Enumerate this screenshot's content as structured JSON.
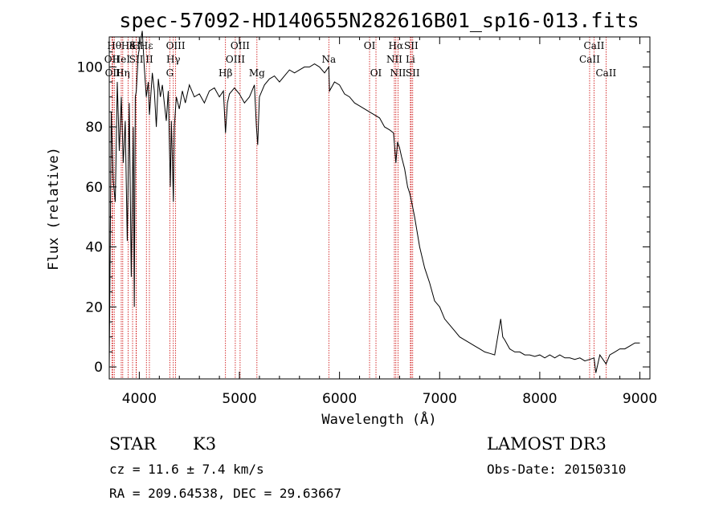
{
  "chart_data": {
    "type": "line",
    "title": "spec-57092-HD140655N282616B01_sp16-013.fits",
    "xlabel": "Wavelength (Å)",
    "ylabel": "Flux (relative)",
    "xlim": [
      3700,
      9100
    ],
    "ylim": [
      -4,
      110
    ],
    "x_ticks": [
      4000,
      5000,
      6000,
      7000,
      8000,
      9000
    ],
    "y_ticks": [
      0,
      20,
      40,
      60,
      80,
      100
    ],
    "series": [
      {
        "name": "spectrum",
        "x": [
          3700,
          3720,
          3740,
          3760,
          3780,
          3800,
          3820,
          3840,
          3860,
          3880,
          3900,
          3920,
          3940,
          3950,
          3960,
          3970,
          3990,
          4010,
          4030,
          4050,
          4070,
          4090,
          4101,
          4110,
          4130,
          4150,
          4170,
          4190,
          4210,
          4230,
          4250,
          4270,
          4290,
          4310,
          4320,
          4330,
          4340,
          4350,
          4370,
          4400,
          4430,
          4460,
          4500,
          4550,
          4600,
          4650,
          4700,
          4750,
          4800,
          4840,
          4861,
          4880,
          4900,
          4950,
          5000,
          5050,
          5100,
          5150,
          5170,
          5183,
          5200,
          5250,
          5300,
          5350,
          5400,
          5450,
          5500,
          5550,
          5600,
          5650,
          5700,
          5750,
          5800,
          5850,
          5893,
          5900,
          5950,
          6000,
          6050,
          6100,
          6150,
          6200,
          6250,
          6300,
          6350,
          6400,
          6450,
          6500,
          6540,
          6563,
          6580,
          6600,
          6620,
          6650,
          6680,
          6700,
          6720,
          6750,
          6800,
          6850,
          6900,
          6950,
          7000,
          7050,
          7100,
          7150,
          7200,
          7250,
          7300,
          7350,
          7400,
          7450,
          7500,
          7550,
          7590,
          7610,
          7630,
          7650,
          7700,
          7750,
          7800,
          7850,
          7900,
          7950,
          8000,
          8050,
          8100,
          8150,
          8200,
          8250,
          8300,
          8350,
          8400,
          8450,
          8500,
          8542,
          8560,
          8600,
          8662,
          8700,
          8750,
          8800,
          8850,
          8900,
          8950,
          9000
        ],
        "y": [
          0,
          85,
          62,
          55,
          95,
          72,
          90,
          68,
          82,
          42,
          88,
          30,
          80,
          20,
          90,
          92,
          104,
          108,
          112,
          100,
          90,
          95,
          84,
          88,
          98,
          92,
          80,
          96,
          90,
          94,
          88,
          82,
          92,
          60,
          82,
          70,
          55,
          80,
          90,
          86,
          92,
          88,
          94,
          90,
          91,
          88,
          92,
          93,
          90,
          92,
          78,
          88,
          91,
          93,
          91,
          88,
          90,
          94,
          80,
          74,
          90,
          94,
          96,
          97,
          95,
          97,
          99,
          98,
          99,
          100,
          100,
          101,
          100,
          98,
          100,
          92,
          95,
          94,
          91,
          90,
          88,
          87,
          86,
          85,
          84,
          83,
          80,
          79,
          78,
          68,
          75,
          73,
          70,
          66,
          60,
          58,
          55,
          50,
          40,
          33,
          28,
          22,
          20,
          16,
          14,
          12,
          10,
          9,
          8,
          7,
          6,
          5,
          4.5,
          4,
          12,
          16,
          10,
          9,
          6,
          5,
          5,
          4,
          4,
          3.5,
          4,
          3,
          4,
          3,
          4,
          3,
          3,
          2.5,
          3,
          2,
          2.5,
          3,
          -2,
          4,
          1,
          4,
          5,
          6,
          6,
          7,
          8,
          8
        ]
      }
    ],
    "line_ids": [
      {
        "w": 3727,
        "label": "OII",
        "row": 1
      },
      {
        "w": 3734,
        "label": "OII",
        "row": 2
      },
      {
        "w": 3750,
        "label": "Hθ",
        "row": 0
      },
      {
        "w": 3820,
        "label": "HeI",
        "row": 1
      },
      {
        "w": 3835,
        "label": "Hη",
        "row": 2
      },
      {
        "w": 3889,
        "label": "Hδ",
        "row": 0
      },
      {
        "w": 3933,
        "label": "K",
        "row": 0
      },
      {
        "w": 3968,
        "label": "H",
        "row": 0
      },
      {
        "w": 3970,
        "label": "SII",
        "row": 1
      },
      {
        "w": 4071,
        "label": "Hε",
        "row": 0
      },
      {
        "w": 4101,
        "label": "II",
        "row": 1
      },
      {
        "w": 4305,
        "label": "G",
        "row": 2
      },
      {
        "w": 4340,
        "label": "Hγ",
        "row": 1
      },
      {
        "w": 4363,
        "label": "OIII",
        "row": 0
      },
      {
        "w": 4861,
        "label": "Hβ",
        "row": 2
      },
      {
        "w": 4959,
        "label": "OIII",
        "row": 1
      },
      {
        "w": 5007,
        "label": "OIII",
        "row": 0
      },
      {
        "w": 5175,
        "label": "Mg",
        "row": 2
      },
      {
        "w": 5893,
        "label": "Na",
        "row": 1
      },
      {
        "w": 6300,
        "label": "OI",
        "row": 0
      },
      {
        "w": 6364,
        "label": "OI",
        "row": 2
      },
      {
        "w": 6548,
        "label": "NII",
        "row": 1
      },
      {
        "w": 6563,
        "label": "Hα",
        "row": 0
      },
      {
        "w": 6584,
        "label": "NII",
        "row": 2
      },
      {
        "w": 6708,
        "label": "Li",
        "row": 1
      },
      {
        "w": 6716,
        "label": "SII",
        "row": 0
      },
      {
        "w": 6731,
        "label": "SII",
        "row": 2
      },
      {
        "w": 8498,
        "label": "CaII",
        "row": 1
      },
      {
        "w": 8542,
        "label": "CaII",
        "row": 0
      },
      {
        "w": 8662,
        "label": "CaII",
        "row": 2
      }
    ]
  },
  "info": {
    "object_class": "STAR",
    "subclass": "K3",
    "survey": "LAMOST DR3",
    "redshift": "cz = 11.6 ± 7.4 km/s",
    "obs_date": "Obs-Date: 20150310",
    "coords": "RA = 209.64538, DEC =  29.63667"
  },
  "colors": {
    "line_marker": "#cc0000",
    "spectrum": "#000000"
  }
}
